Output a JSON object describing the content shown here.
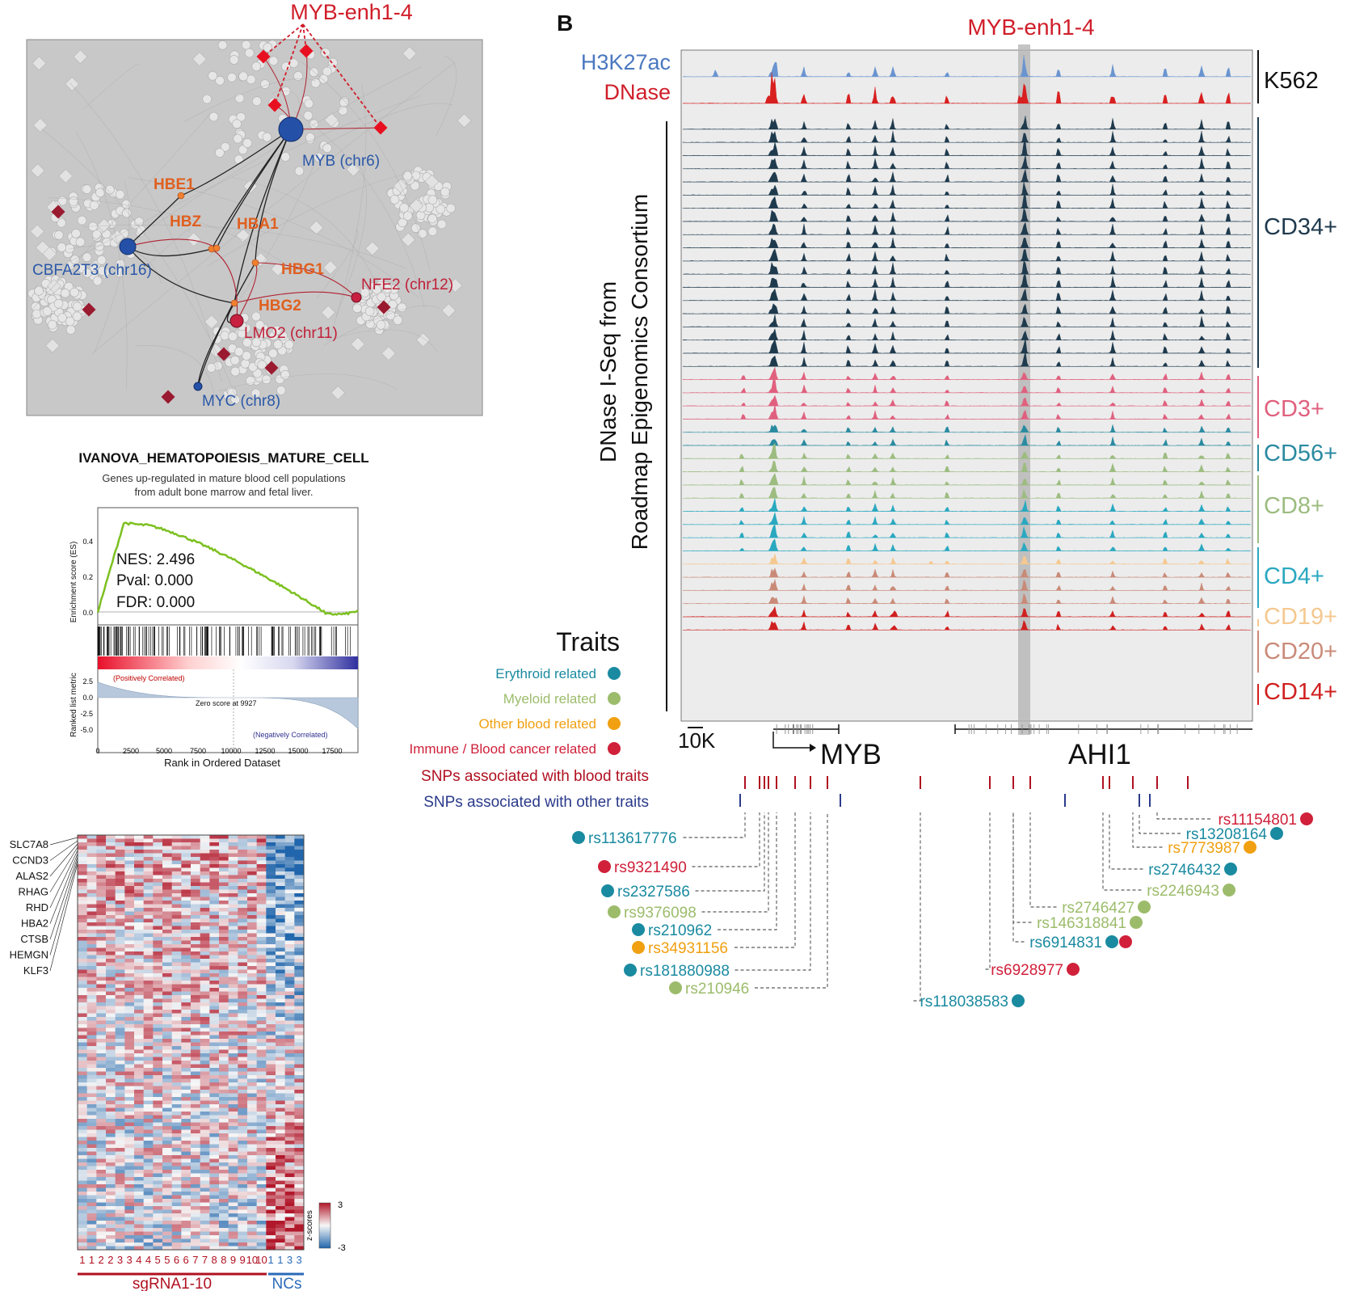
{
  "network": {
    "enhancer_label": "MYB-enh1-4",
    "hub_genes": [
      {
        "id": "myb",
        "label": "MYB (chr6)"
      },
      {
        "id": "cbfa2t3",
        "label": "CBFA2T3 (chr16)"
      },
      {
        "id": "nfe2",
        "label": "NFE2 (chr12)"
      },
      {
        "id": "lmo2",
        "label": "LMO2 (chr11)"
      },
      {
        "id": "myc",
        "label": "MYC (chr8)"
      }
    ],
    "globin_genes": [
      "HBE1",
      "HBZ",
      "HBA1",
      "HBG1",
      "HBG2"
    ]
  },
  "gsea": {
    "title": "IVANOVA_HEMATOPOIESIS_MATURE_CELL",
    "subtitle_line1": "Genes up-regulated in mature blood cell populations",
    "subtitle_line2": "from adult bone marrow and fetal liver.",
    "ylabel_top": "Enrichment score (ES)",
    "ylabel_bottom": "Ranked list metric",
    "xlabel": "Rank in Ordered Dataset",
    "stat_nes": "NES: 2.496",
    "stat_pval": "Pval: 0.000",
    "stat_fdr": "FDR: 0.000",
    "pos_label": "(Positively Correlated)",
    "neg_label": "(Negatively Correlated)",
    "zero_label": "Zero score at 9927",
    "es_ticks": [
      "0.4",
      "0.2",
      "0.0"
    ],
    "metric_ticks": [
      "2.5",
      "0.0",
      "-2.5",
      "-5.0"
    ],
    "rank_ticks": [
      "0",
      "2500",
      "5000",
      "7500",
      "10000",
      "12500",
      "15000",
      "17500"
    ]
  },
  "heatmap": {
    "genes": [
      "SLC7A8",
      "CCND3",
      "ALAS2",
      "RHAG",
      "RHD",
      "HBA2",
      "CTSB",
      "HEMGN",
      "KLF3"
    ],
    "column_labels": [
      "1",
      "1",
      "2",
      "2",
      "3",
      "3",
      "4",
      "4",
      "5",
      "5",
      "6",
      "6",
      "7",
      "7",
      "8",
      "8",
      "9",
      "9",
      "10",
      "10",
      "1",
      "1",
      "3",
      "3"
    ],
    "group_sg": "sgRNA1-10",
    "group_nc": "NCs",
    "scale_label": "z-scores",
    "scale_max": "3",
    "scale_min": "-3"
  },
  "browser": {
    "panel_letter": "B",
    "region_label": "MYB-enh1-4",
    "k562_tracks": [
      "H3K27ac",
      "DNase"
    ],
    "k562_label": "K562",
    "roadmap_line1": "DNase I-Seq from",
    "roadmap_line2": "Roadmap Epigenomics Consortium",
    "groups": [
      {
        "label": "CD34+",
        "color": "#1f3a4d"
      },
      {
        "label": "CD3+",
        "color": "#e0607e"
      },
      {
        "label": "CD56+",
        "color": "#2a8aa0"
      },
      {
        "label": "CD8+",
        "color": "#9cbc80"
      },
      {
        "label": "CD4+",
        "color": "#2aa8c0"
      },
      {
        "label": "CD19+",
        "color": "#f5c890"
      },
      {
        "label": "CD20+",
        "color": "#c98a78"
      },
      {
        "label": "CD14+",
        "color": "#d02020"
      }
    ],
    "scale_label": "10K",
    "genes": [
      "MYB",
      "AHI1"
    ],
    "traits_title": "Traits",
    "trait_legend": [
      {
        "label": "Erythroid related",
        "color": "#1a8aa0"
      },
      {
        "label": "Myeloid related",
        "color": "#9cbc6c"
      },
      {
        "label": "Other blood related",
        "color": "#f0a010"
      },
      {
        "label": "Immune / Blood cancer related",
        "color": "#d0203a"
      }
    ],
    "snp_row_blood": "SNPs associated with blood traits",
    "snp_row_other": "SNPs associated with other traits",
    "snps_left": [
      {
        "id": "rs113617776",
        "trait": "erythroid"
      },
      {
        "id": "rs9321490",
        "trait": "immune"
      },
      {
        "id": "rs2327586",
        "trait": "erythroid"
      },
      {
        "id": "rs9376098",
        "trait": "myeloid"
      },
      {
        "id": "rs210962",
        "trait": "erythroid"
      },
      {
        "id": "rs34931156",
        "trait": "other"
      },
      {
        "id": "rs181880988",
        "trait": "erythroid"
      },
      {
        "id": "rs210946",
        "trait": "myeloid"
      }
    ],
    "snps_right": [
      {
        "id": "rs11154801",
        "trait": "immune"
      },
      {
        "id": "rs13208164",
        "trait": "erythroid"
      },
      {
        "id": "rs7773987",
        "trait": "other"
      },
      {
        "id": "rs2746432",
        "trait": "erythroid"
      },
      {
        "id": "rs2246943",
        "trait": "myeloid"
      },
      {
        "id": "rs2746427",
        "trait": "myeloid"
      },
      {
        "id": "rs146318841",
        "trait": "myeloid"
      },
      {
        "id": "rs6914831",
        "trait": "erythroid,immune"
      },
      {
        "id": "rs6928977",
        "trait": "immune"
      },
      {
        "id": "rs118038583",
        "trait": "erythroid"
      }
    ]
  }
}
